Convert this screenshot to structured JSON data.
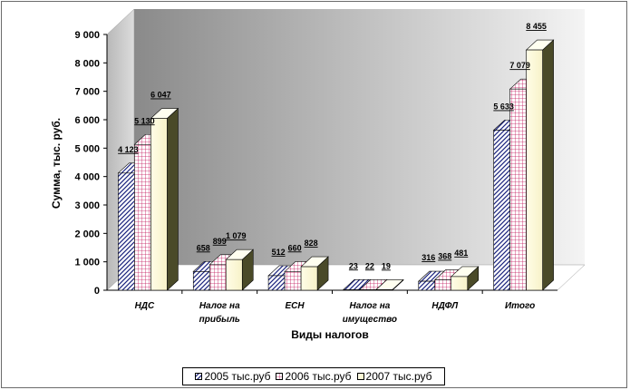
{
  "chart_data": {
    "type": "bar",
    "ylabel": "Сумма, тыс. руб.",
    "xlabel": "Виды налогов",
    "ylim": [
      0,
      9000
    ],
    "yticks": [
      "0",
      "1 000",
      "2 000",
      "3 000",
      "4 000",
      "5 000",
      "6 000",
      "7 000",
      "8 000",
      "9 000"
    ],
    "categories": [
      [
        "НДС"
      ],
      [
        "Налог на",
        "прибыль"
      ],
      [
        "ЕСН"
      ],
      [
        "Налог на",
        "имущество"
      ],
      [
        "НДФЛ"
      ],
      [
        "Итого"
      ]
    ],
    "series": [
      {
        "name": "2005 тыс.руб",
        "values": [
          4123,
          658,
          512,
          23,
          316,
          5633
        ],
        "labels": [
          "4 123",
          "658",
          "512",
          "23",
          "316",
          "5 633"
        ],
        "fill": "hatch-diag",
        "color": "#1a237e"
      },
      {
        "name": "2006 тыс.руб",
        "values": [
          5130,
          899,
          660,
          22,
          368,
          7079
        ],
        "labels": [
          "5 130",
          "899",
          "660",
          "22",
          "368",
          "7 079"
        ],
        "fill": "grid",
        "color": "#c2185b"
      },
      {
        "name": "2007 тыс.руб",
        "values": [
          6047,
          1079,
          828,
          19,
          481,
          8455
        ],
        "labels": [
          "6 047",
          "1 079",
          "828",
          "19",
          "481",
          "8 455"
        ],
        "fill": "solid",
        "color": "#fffde7"
      }
    ],
    "legend_position": "bottom",
    "grid": false,
    "style": "3d-columns"
  }
}
